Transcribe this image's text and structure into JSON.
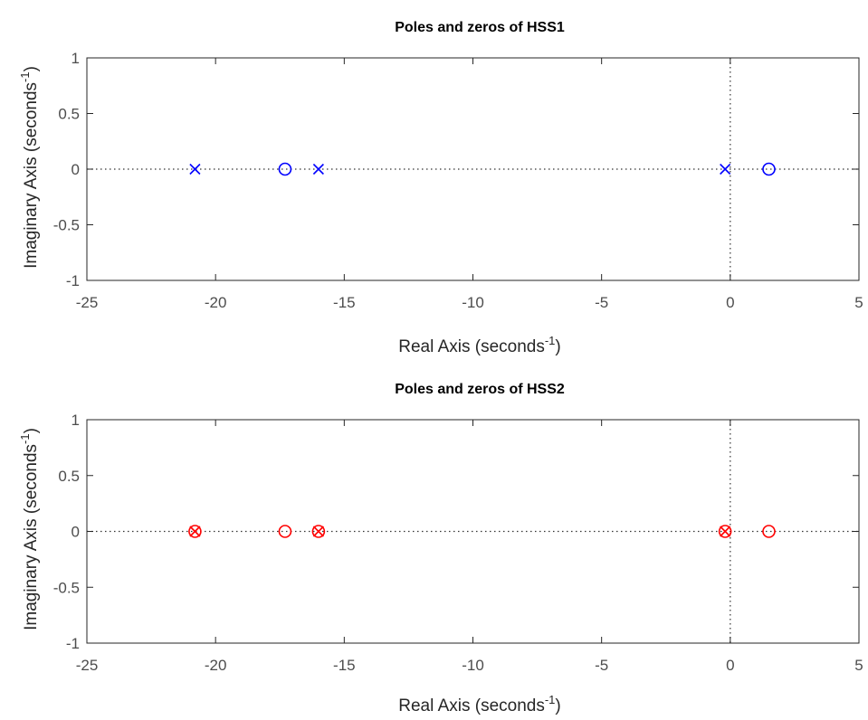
{
  "chart_data": [
    {
      "type": "scatter",
      "title": "Poles and zeros of HSS1",
      "xlabel": "Real Axis (seconds",
      "ylabel": "Imaginary Axis (seconds",
      "label_superscript": "-1",
      "label_suffix": ")",
      "xlim": [
        -25,
        5
      ],
      "ylim": [
        -1,
        1
      ],
      "xticks": [
        -25,
        -20,
        -15,
        -10,
        -5,
        0,
        5
      ],
      "yticks": [
        -1,
        -0.5,
        0,
        0.5,
        1
      ],
      "grid": false,
      "color": "#0000ff",
      "poles": [
        {
          "x": -20.8,
          "y": 0
        },
        {
          "x": -16.0,
          "y": 0
        },
        {
          "x": -0.2,
          "y": 0
        }
      ],
      "zeros": [
        {
          "x": -17.3,
          "y": 0
        },
        {
          "x": 1.5,
          "y": 0
        }
      ]
    },
    {
      "type": "scatter",
      "title": "Poles and zeros of HSS2",
      "xlabel": "Real Axis (seconds",
      "ylabel": "Imaginary Axis (seconds",
      "label_superscript": "-1",
      "label_suffix": ")",
      "xlim": [
        -25,
        5
      ],
      "ylim": [
        -1,
        1
      ],
      "xticks": [
        -25,
        -20,
        -15,
        -10,
        -5,
        0,
        5
      ],
      "yticks": [
        -1,
        -0.5,
        0,
        0.5,
        1
      ],
      "grid": false,
      "color": "#ff0000",
      "poles": [
        {
          "x": -20.8,
          "y": 0
        },
        {
          "x": -16.0,
          "y": 0
        },
        {
          "x": -0.2,
          "y": 0
        }
      ],
      "zeros": [
        {
          "x": -20.8,
          "y": 0
        },
        {
          "x": -17.3,
          "y": 0
        },
        {
          "x": -16.0,
          "y": 0
        },
        {
          "x": -0.2,
          "y": 0
        },
        {
          "x": 1.5,
          "y": 0
        }
      ]
    }
  ]
}
